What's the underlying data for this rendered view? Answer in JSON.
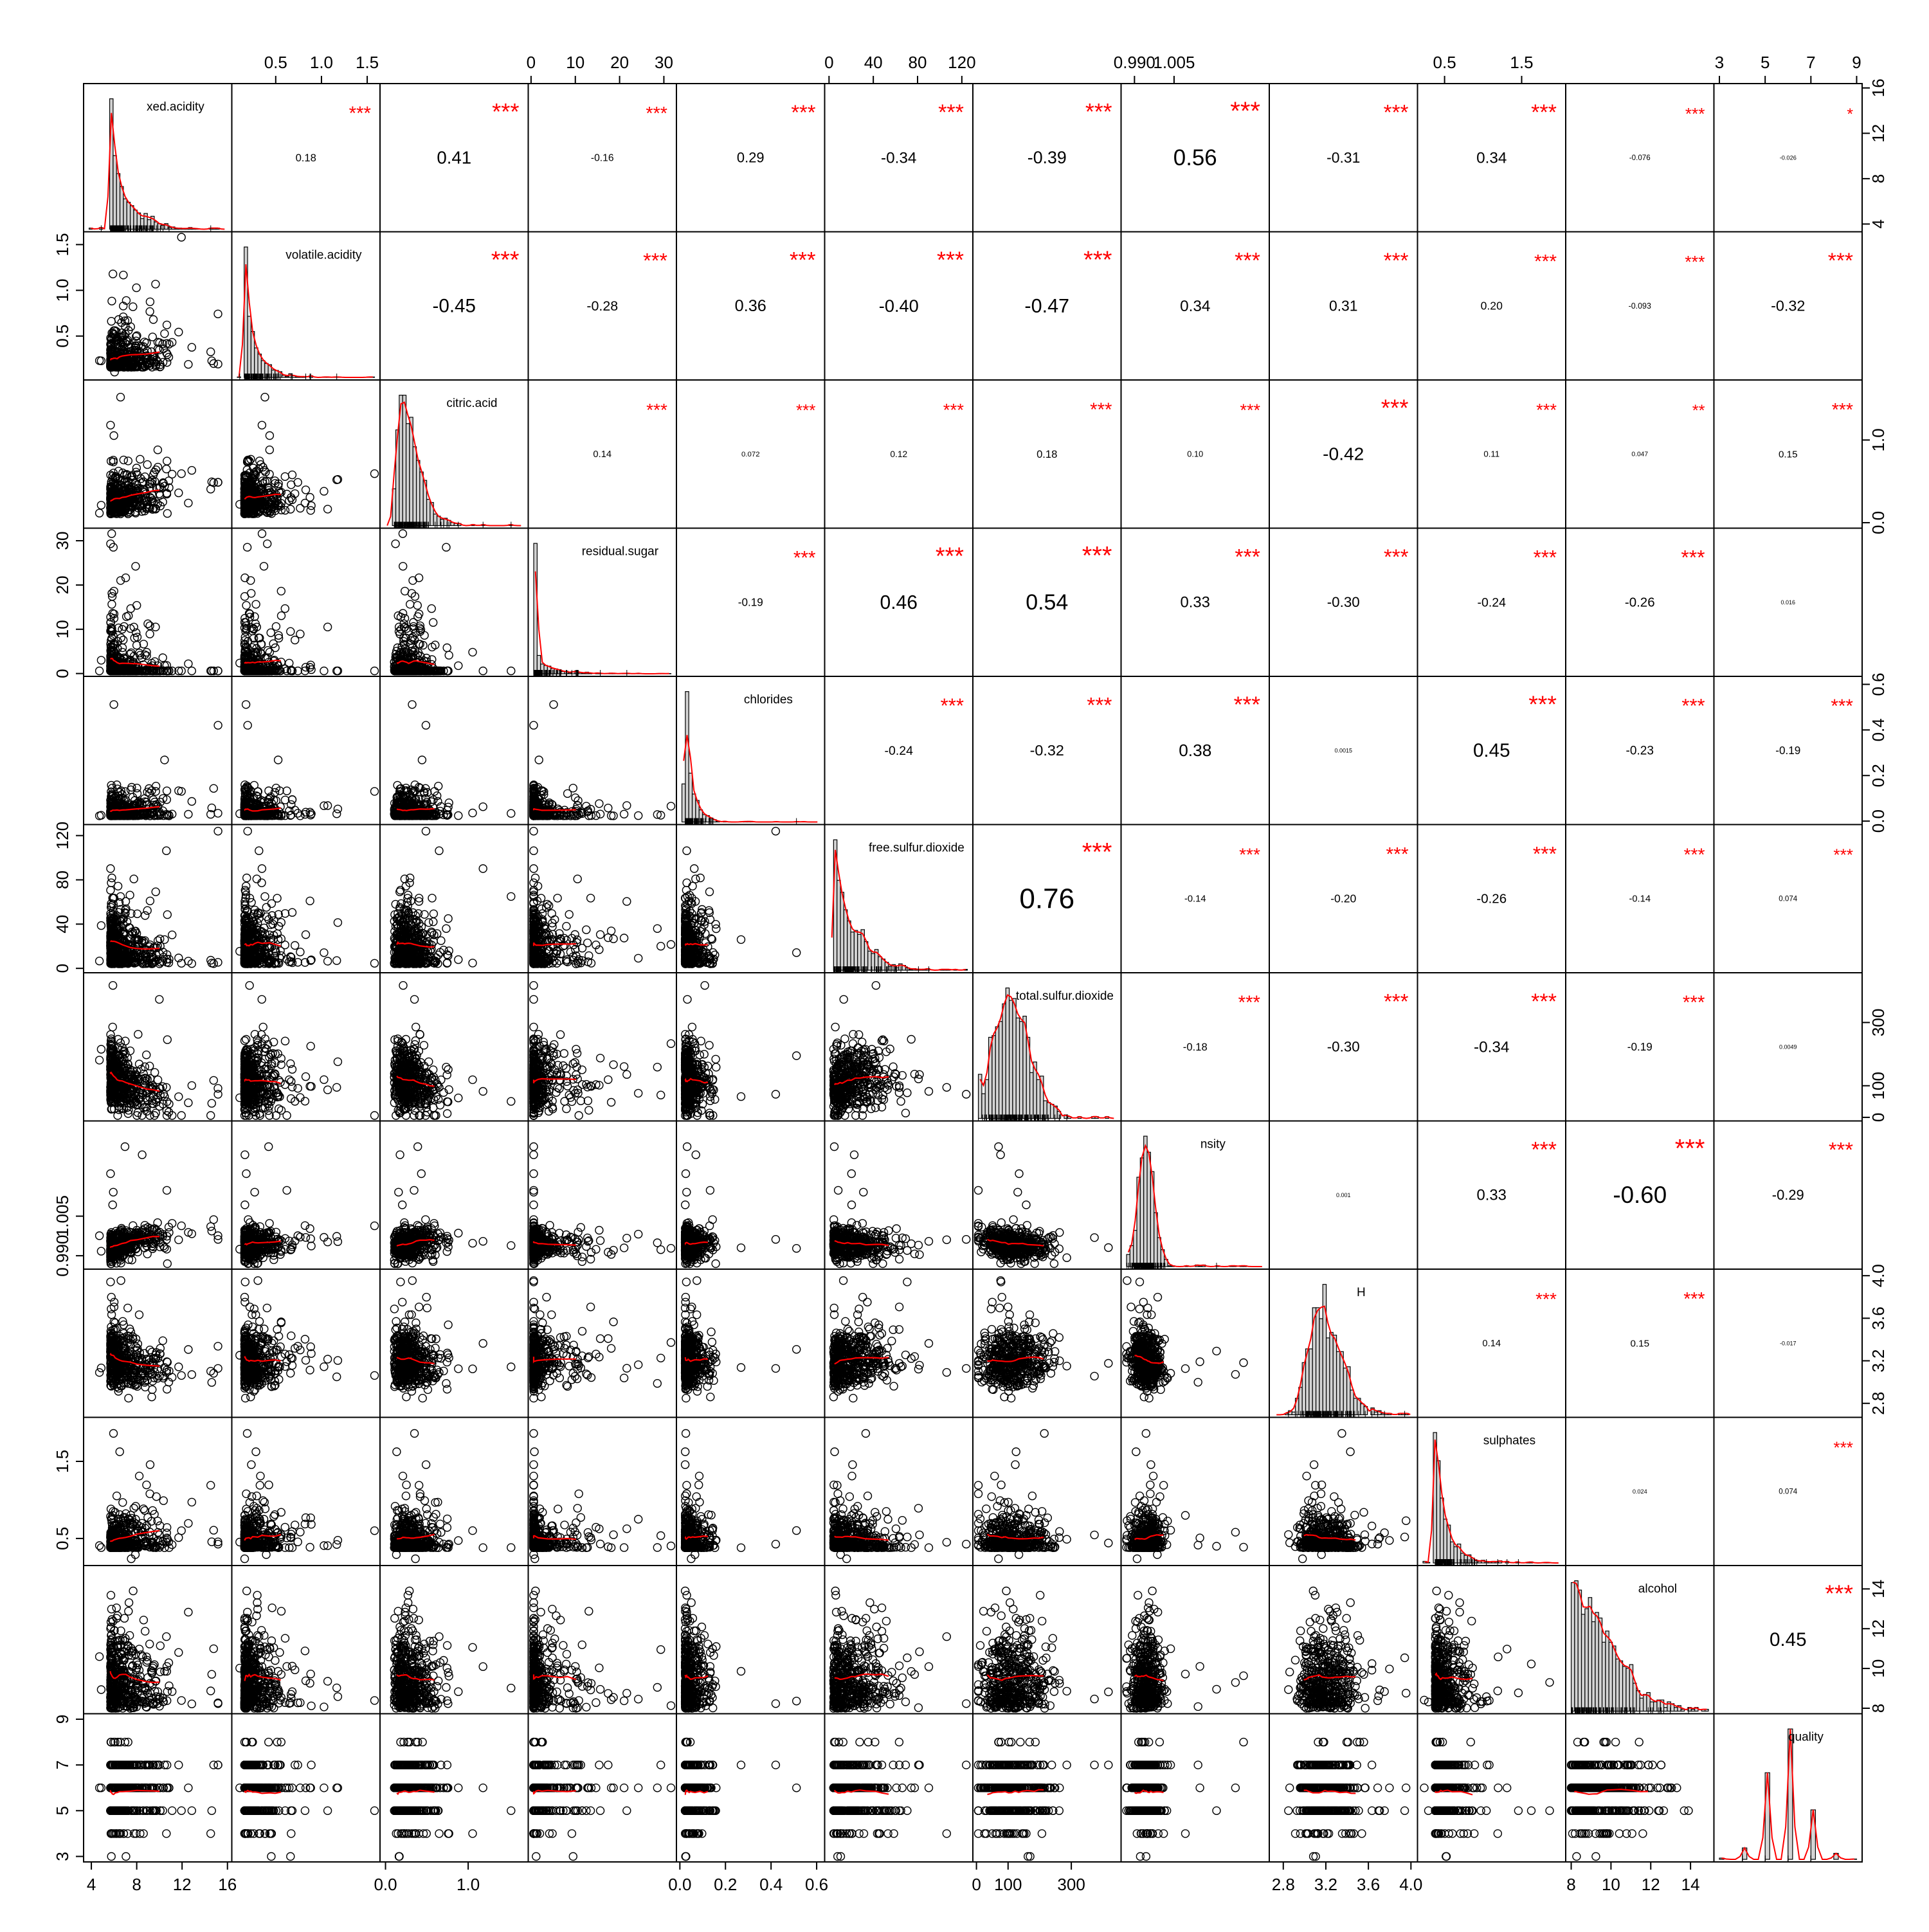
{
  "chart_data": {
    "type": "scatter",
    "title": "",
    "layout": "pairs-matrix",
    "stars_color": "#ff0000",
    "smooth_color": "#ff0000",
    "variables": [
      {
        "name": "fixed.acidity",
        "label_shown": "xed.acidity",
        "range": [
          3.8,
          15.9
        ],
        "ticks": [
          "4",
          "8",
          "12",
          "16"
        ],
        "tick_values": [
          4,
          8,
          12,
          16
        ],
        "tick_side": "right",
        "hist_peak": 7.0,
        "hist_spread": 1.3,
        "hist_skew": 1.8
      },
      {
        "name": "volatile.acidity",
        "label_shown": "volatile.acidity",
        "range": [
          0.08,
          1.58
        ],
        "ticks": [
          "0.5",
          "1.0",
          "1.5"
        ],
        "tick_values": [
          0.5,
          1.0,
          1.5
        ],
        "tick_side": "left",
        "hist_peak": 0.28,
        "hist_spread": 0.12,
        "hist_skew": 2.0
      },
      {
        "name": "citric.acid",
        "label_shown": "citric.acid",
        "range": [
          0.0,
          1.66
        ],
        "ticks": [
          "0.0",
          "1.0"
        ],
        "tick_values": [
          0.0,
          1.0
        ],
        "tick_side": "right",
        "hist_peak": 0.31,
        "hist_spread": 0.14,
        "hist_skew": 0.8
      },
      {
        "name": "residual.sugar",
        "label_shown": "residual.sugar",
        "range": [
          0.6,
          31.6
        ],
        "ticks": [
          "0",
          "10",
          "20",
          "30"
        ],
        "tick_values": [
          0,
          10,
          20,
          30
        ],
        "tick_side": "left",
        "hist_peak": 2.0,
        "hist_spread": 2.5,
        "hist_skew": 3.0
      },
      {
        "name": "chlorides",
        "label_shown": "chlorides",
        "range": [
          0.009,
          0.611
        ],
        "ticks": [
          "0.0",
          "0.2",
          "0.4",
          "0.6"
        ],
        "tick_values": [
          0.0,
          0.2,
          0.4,
          0.6
        ],
        "tick_side": "right",
        "hist_peak": 0.045,
        "hist_spread": 0.02,
        "hist_skew": 3.0
      },
      {
        "name": "free.sulfur.dioxide",
        "label_shown": "free.sulfur.dioxide",
        "range": [
          1,
          125
        ],
        "ticks": [
          "0",
          "40",
          "80",
          "120"
        ],
        "tick_values": [
          0,
          40,
          80,
          120
        ],
        "tick_side": "left",
        "hist_peak": 20,
        "hist_spread": 14,
        "hist_skew": 1.2
      },
      {
        "name": "total.sulfur.dioxide",
        "label_shown": "total.sulfur.dioxide",
        "range": [
          6,
          440
        ],
        "ticks": [
          "0",
          "100",
          "300"
        ],
        "tick_values": [
          0,
          100,
          300
        ],
        "tick_side": "right",
        "hist_peak": 115,
        "hist_spread": 55,
        "hist_skew": 0.2
      },
      {
        "name": "density",
        "label_shown": "nsity",
        "range": [
          0.987,
          1.039
        ],
        "ticks": [
          "0.990",
          "1.005"
        ],
        "tick_values": [
          0.99,
          1.005
        ],
        "tick_side": "left",
        "hist_peak": 0.9945,
        "hist_spread": 0.003,
        "hist_skew": 0.1
      },
      {
        "name": "pH",
        "label_shown": "H",
        "range": [
          2.72,
          4.01
        ],
        "ticks": [
          "2.8",
          "3.2",
          "3.6",
          "4.0"
        ],
        "tick_values": [
          2.8,
          3.2,
          3.6,
          4.0
        ],
        "tick_side": "right",
        "hist_peak": 3.21,
        "hist_spread": 0.16,
        "hist_skew": 0.4
      },
      {
        "name": "sulphates",
        "label_shown": "sulphates",
        "range": [
          0.22,
          2.0
        ],
        "ticks": [
          "0.5",
          "1.5"
        ],
        "tick_values": [
          0.5,
          1.5
        ],
        "tick_side": "left",
        "hist_peak": 0.5,
        "hist_spread": 0.12,
        "hist_skew": 2.0
      },
      {
        "name": "alcohol",
        "label_shown": "alcohol",
        "range": [
          8.0,
          14.9
        ],
        "ticks": [
          "8",
          "10",
          "12",
          "14"
        ],
        "tick_values": [
          8,
          10,
          12,
          14
        ],
        "tick_side": "right",
        "hist_peak": 9.6,
        "hist_spread": 1.2,
        "hist_skew": 0.9
      },
      {
        "name": "quality",
        "label_shown": "quality",
        "range": [
          3,
          9
        ],
        "ticks": [
          "3",
          "5",
          "7",
          "9"
        ],
        "tick_values": [
          3,
          5,
          7,
          9
        ],
        "tick_side": "left",
        "discrete": true
      }
    ],
    "quality_counts": {
      "3": 30,
      "4": 216,
      "5": 2138,
      "6": 2836,
      "7": 1079,
      "8": 193,
      "9": 5
    },
    "correlations": [
      {
        "row": "fixed.acidity",
        "col": "volatile.acidity",
        "r": "0.18",
        "stars": "***"
      },
      {
        "row": "fixed.acidity",
        "col": "citric.acid",
        "r": "0.41",
        "stars": "***"
      },
      {
        "row": "fixed.acidity",
        "col": "residual.sugar",
        "r": "-0.16",
        "stars": "***"
      },
      {
        "row": "fixed.acidity",
        "col": "chlorides",
        "r": "0.29",
        "stars": "***"
      },
      {
        "row": "fixed.acidity",
        "col": "free.sulfur.dioxide",
        "r": "-0.34",
        "stars": "***"
      },
      {
        "row": "fixed.acidity",
        "col": "total.sulfur.dioxide",
        "r": "-0.39",
        "stars": "***"
      },
      {
        "row": "fixed.acidity",
        "col": "density",
        "r": "0.56",
        "stars": "***"
      },
      {
        "row": "fixed.acidity",
        "col": "pH",
        "r": "-0.31",
        "stars": "***"
      },
      {
        "row": "fixed.acidity",
        "col": "sulphates",
        "r": "0.34",
        "stars": "***"
      },
      {
        "row": "fixed.acidity",
        "col": "alcohol",
        "r": "-0.076",
        "stars": "***"
      },
      {
        "row": "fixed.acidity",
        "col": "quality",
        "r": "-0.026",
        "stars": "*"
      },
      {
        "row": "volatile.acidity",
        "col": "citric.acid",
        "r": "-0.45",
        "stars": "***"
      },
      {
        "row": "volatile.acidity",
        "col": "residual.sugar",
        "r": "-0.28",
        "stars": "***"
      },
      {
        "row": "volatile.acidity",
        "col": "chlorides",
        "r": "0.36",
        "stars": "***"
      },
      {
        "row": "volatile.acidity",
        "col": "free.sulfur.dioxide",
        "r": "-0.40",
        "stars": "***"
      },
      {
        "row": "volatile.acidity",
        "col": "total.sulfur.dioxide",
        "r": "-0.47",
        "stars": "***"
      },
      {
        "row": "volatile.acidity",
        "col": "density",
        "r": "0.34",
        "stars": "***"
      },
      {
        "row": "volatile.acidity",
        "col": "pH",
        "r": "0.31",
        "stars": "***"
      },
      {
        "row": "volatile.acidity",
        "col": "sulphates",
        "r": "0.20",
        "stars": "***"
      },
      {
        "row": "volatile.acidity",
        "col": "alcohol",
        "r": "-0.093",
        "stars": "***"
      },
      {
        "row": "volatile.acidity",
        "col": "quality",
        "r": "-0.32",
        "stars": "***"
      },
      {
        "row": "citric.acid",
        "col": "residual.sugar",
        "r": "0.14",
        "stars": "***"
      },
      {
        "row": "citric.acid",
        "col": "chlorides",
        "r": "0.072",
        "stars": "***"
      },
      {
        "row": "citric.acid",
        "col": "free.sulfur.dioxide",
        "r": "0.12",
        "stars": "***"
      },
      {
        "row": "citric.acid",
        "col": "total.sulfur.dioxide",
        "r": "0.18",
        "stars": "***"
      },
      {
        "row": "citric.acid",
        "col": "density",
        "r": "0.10",
        "stars": "***"
      },
      {
        "row": "citric.acid",
        "col": "pH",
        "r": "-0.42",
        "stars": "***"
      },
      {
        "row": "citric.acid",
        "col": "sulphates",
        "r": "0.11",
        "stars": "***"
      },
      {
        "row": "citric.acid",
        "col": "alcohol",
        "r": "0.047",
        "stars": "**"
      },
      {
        "row": "citric.acid",
        "col": "quality",
        "r": "0.15",
        "stars": "***"
      },
      {
        "row": "residual.sugar",
        "col": "chlorides",
        "r": "-0.19",
        "stars": "***"
      },
      {
        "row": "residual.sugar",
        "col": "free.sulfur.dioxide",
        "r": "0.46",
        "stars": "***"
      },
      {
        "row": "residual.sugar",
        "col": "total.sulfur.dioxide",
        "r": "0.54",
        "stars": "***"
      },
      {
        "row": "residual.sugar",
        "col": "density",
        "r": "0.33",
        "stars": "***"
      },
      {
        "row": "residual.sugar",
        "col": "pH",
        "r": "-0.30",
        "stars": "***"
      },
      {
        "row": "residual.sugar",
        "col": "sulphates",
        "r": "-0.24",
        "stars": "***"
      },
      {
        "row": "residual.sugar",
        "col": "alcohol",
        "r": "-0.26",
        "stars": "***"
      },
      {
        "row": "residual.sugar",
        "col": "quality",
        "r": "0.016",
        "stars": ""
      },
      {
        "row": "chlorides",
        "col": "free.sulfur.dioxide",
        "r": "-0.24",
        "stars": "***"
      },
      {
        "row": "chlorides",
        "col": "total.sulfur.dioxide",
        "r": "-0.32",
        "stars": "***"
      },
      {
        "row": "chlorides",
        "col": "density",
        "r": "0.38",
        "stars": "***"
      },
      {
        "row": "chlorides",
        "col": "pH",
        "r": "0.0015",
        "stars": ""
      },
      {
        "row": "chlorides",
        "col": "sulphates",
        "r": "0.45",
        "stars": "***"
      },
      {
        "row": "chlorides",
        "col": "alcohol",
        "r": "-0.23",
        "stars": "***"
      },
      {
        "row": "chlorides",
        "col": "quality",
        "r": "-0.19",
        "stars": "***"
      },
      {
        "row": "free.sulfur.dioxide",
        "col": "total.sulfur.dioxide",
        "r": "0.76",
        "stars": "***"
      },
      {
        "row": "free.sulfur.dioxide",
        "col": "density",
        "r": "-0.14",
        "stars": "***"
      },
      {
        "row": "free.sulfur.dioxide",
        "col": "pH",
        "r": "-0.20",
        "stars": "***"
      },
      {
        "row": "free.sulfur.dioxide",
        "col": "sulphates",
        "r": "-0.26",
        "stars": "***"
      },
      {
        "row": "free.sulfur.dioxide",
        "col": "alcohol",
        "r": "-0.14",
        "stars": "***"
      },
      {
        "row": "free.sulfur.dioxide",
        "col": "quality",
        "r": "0.074",
        "stars": "***"
      },
      {
        "row": "total.sulfur.dioxide",
        "col": "density",
        "r": "-0.18",
        "stars": "***"
      },
      {
        "row": "total.sulfur.dioxide",
        "col": "pH",
        "r": "-0.30",
        "stars": "***"
      },
      {
        "row": "total.sulfur.dioxide",
        "col": "sulphates",
        "r": "-0.34",
        "stars": "***"
      },
      {
        "row": "total.sulfur.dioxide",
        "col": "alcohol",
        "r": "-0.19",
        "stars": "***"
      },
      {
        "row": "total.sulfur.dioxide",
        "col": "quality",
        "r": "0.0049",
        "stars": ""
      },
      {
        "row": "density",
        "col": "pH",
        "r": "0.001",
        "stars": ""
      },
      {
        "row": "density",
        "col": "sulphates",
        "r": "0.33",
        "stars": "***"
      },
      {
        "row": "density",
        "col": "alcohol",
        "r": "-0.60",
        "stars": "***"
      },
      {
        "row": "density",
        "col": "quality",
        "r": "-0.29",
        "stars": "***"
      },
      {
        "row": "pH",
        "col": "sulphates",
        "r": "0.14",
        "stars": "***"
      },
      {
        "row": "pH",
        "col": "alcohol",
        "r": "0.15",
        "stars": "***"
      },
      {
        "row": "pH",
        "col": "quality",
        "r": "-0.017",
        "stars": ""
      },
      {
        "row": "sulphates",
        "col": "alcohol",
        "r": "0.024",
        "stars": ""
      },
      {
        "row": "sulphates",
        "col": "quality",
        "r": "0.074",
        "stars": "***"
      },
      {
        "row": "alcohol",
        "col": "quality",
        "r": "0.45",
        "stars": "***"
      }
    ]
  }
}
